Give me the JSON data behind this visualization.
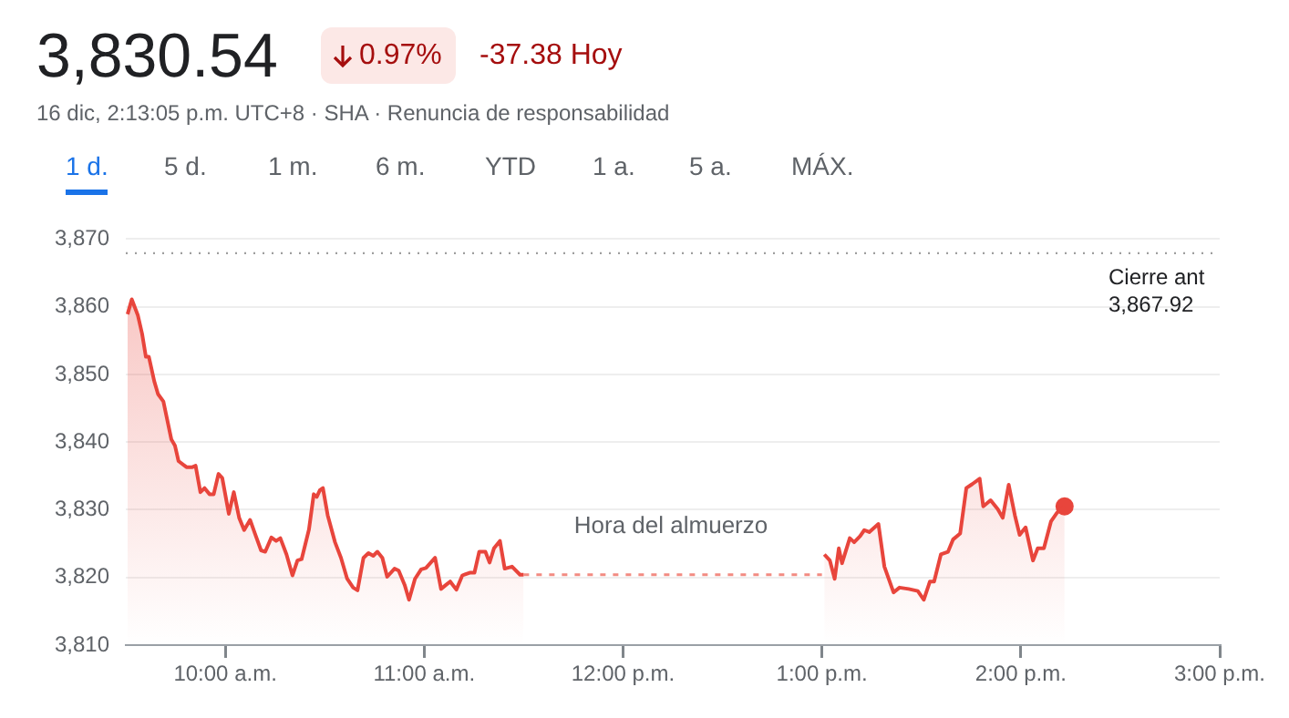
{
  "chart_data": {
    "type": "area",
    "title": "3,830.54",
    "subtitle": "16 dic, 2:13:05 p.m. UTC+8 · SHA · Renuncia de responsabilidad",
    "annotations": [
      "0.97%",
      "-37.38 Hoy",
      "1 d.",
      "5 d.",
      "1 m.",
      "6 m.",
      "YTD",
      "1 a.",
      "5 a.",
      "MÁX.",
      "Hora del almuerzo"
    ],
    "xlim": [
      9.5,
      15
    ],
    "xticks": [
      {
        "value": 10,
        "label": "10:00 a.m."
      },
      {
        "value": 11,
        "label": "11:00 a.m."
      },
      {
        "value": 12,
        "label": "12:00 p.m."
      },
      {
        "value": 13,
        "label": "1:00 p.m."
      },
      {
        "value": 14,
        "label": "2:00 p.m."
      },
      {
        "value": 15,
        "label": "3:00 p.m."
      }
    ],
    "ylim": [
      3810,
      3870
    ],
    "yticks": [
      {
        "value": 3810,
        "label": "3,810"
      },
      {
        "value": 3820,
        "label": "3,820"
      },
      {
        "value": 3830,
        "label": "3,830"
      },
      {
        "value": 3840,
        "label": "3,840"
      },
      {
        "value": 3850,
        "label": "3,850"
      },
      {
        "value": 3860,
        "label": "3,860"
      },
      {
        "value": 3870,
        "label": "3,870"
      }
    ],
    "grid": "y",
    "legend": false,
    "marker": "none",
    "ref_lines": [
      {
        "axis": "y",
        "value": 3867.92,
        "label": "Cierre ant\n3,867.92",
        "color": "#9e9e9e",
        "line_style": "dotted"
      }
    ],
    "series": [
      {
        "color": "#e8453c",
        "x": [
          9.509,
          9.53,
          9.561,
          9.582,
          9.601,
          9.616,
          9.643,
          9.662,
          9.689,
          9.729,
          9.747,
          9.765,
          9.805,
          9.835,
          9.851,
          9.875,
          9.896,
          9.921,
          9.942,
          9.966,
          9.985,
          10.018,
          10.043,
          10.07,
          10.095,
          10.125,
          10.149,
          10.18,
          10.201,
          10.232,
          10.256,
          10.277,
          10.308,
          10.338,
          10.363,
          10.384,
          10.421,
          10.445,
          10.46,
          10.476,
          10.491,
          10.515,
          10.552,
          10.582,
          10.613,
          10.643,
          10.665,
          10.695,
          10.72,
          10.744,
          10.765,
          10.79,
          10.814,
          10.851,
          10.872,
          10.902,
          10.924,
          10.954,
          10.985,
          11.009,
          11.055,
          11.085,
          11.11,
          11.131,
          11.162,
          11.192,
          11.229,
          11.253,
          11.277,
          11.308,
          11.329,
          11.351,
          11.381,
          11.405,
          11.442,
          11.482,
          11.5
        ],
        "values": [
          3858.9,
          3861.1,
          3858.7,
          3856.0,
          3852.6,
          3852.6,
          3849.0,
          3847.1,
          3846.0,
          3840.4,
          3839.5,
          3837.2,
          3836.3,
          3836.3,
          3836.5,
          3832.6,
          3833.2,
          3832.3,
          3832.3,
          3835.3,
          3834.7,
          3829.4,
          3832.6,
          3828.8,
          3827.0,
          3828.5,
          3826.5,
          3824.0,
          3823.8,
          3825.9,
          3825.4,
          3825.8,
          3823.4,
          3820.3,
          3822.5,
          3822.7,
          3827.1,
          3832.3,
          3831.9,
          3832.9,
          3833.2,
          3829.2,
          3825.2,
          3822.9,
          3819.8,
          3818.5,
          3818.1,
          3822.9,
          3823.6,
          3823.2,
          3823.8,
          3822.9,
          3820.1,
          3821.3,
          3821.0,
          3818.9,
          3816.7,
          3819.8,
          3821.2,
          3821.4,
          3822.9,
          3818.3,
          3818.9,
          3819.4,
          3818.2,
          3820.3,
          3820.7,
          3820.7,
          3823.8,
          3823.8,
          3822.2,
          3824.3,
          3825.4,
          3821.3,
          3821.6,
          3820.4,
          3820.4
        ]
      },
      {
        "type": "line",
        "color": "#f28b82",
        "line_style": "dashed",
        "x": [
          11.5,
          13.0
        ],
        "values": [
          3820.4,
          3820.4
        ]
      },
      {
        "color": "#e8453c",
        "x": [
          13.012,
          13.04,
          13.064,
          13.085,
          13.101,
          13.14,
          13.162,
          13.192,
          13.213,
          13.238,
          13.284,
          13.314,
          13.36,
          13.39,
          13.436,
          13.482,
          13.512,
          13.543,
          13.564,
          13.598,
          13.634,
          13.659,
          13.695,
          13.726,
          13.756,
          13.793,
          13.811,
          13.848,
          13.884,
          13.909,
          13.939,
          13.97,
          13.994,
          14.024,
          14.061,
          14.085,
          14.116,
          14.152,
          14.183,
          14.22
        ],
        "values": [
          3823.4,
          3822.5,
          3819.8,
          3824.3,
          3822.1,
          3825.8,
          3825.2,
          3826.1,
          3827.0,
          3826.7,
          3827.9,
          3821.6,
          3817.8,
          3818.5,
          3818.3,
          3818.0,
          3816.7,
          3819.4,
          3819.4,
          3823.4,
          3823.8,
          3825.6,
          3826.5,
          3833.2,
          3833.8,
          3834.6,
          3830.5,
          3831.4,
          3830.1,
          3828.8,
          3833.7,
          3829.2,
          3826.3,
          3827.4,
          3822.5,
          3824.3,
          3824.3,
          3828.3,
          3829.6,
          3830.5
        ]
      },
      {
        "type": "scatter",
        "color": "#e8453c",
        "marker": "circle",
        "x": [
          14.22
        ],
        "values": [
          3830.5
        ]
      }
    ]
  }
}
